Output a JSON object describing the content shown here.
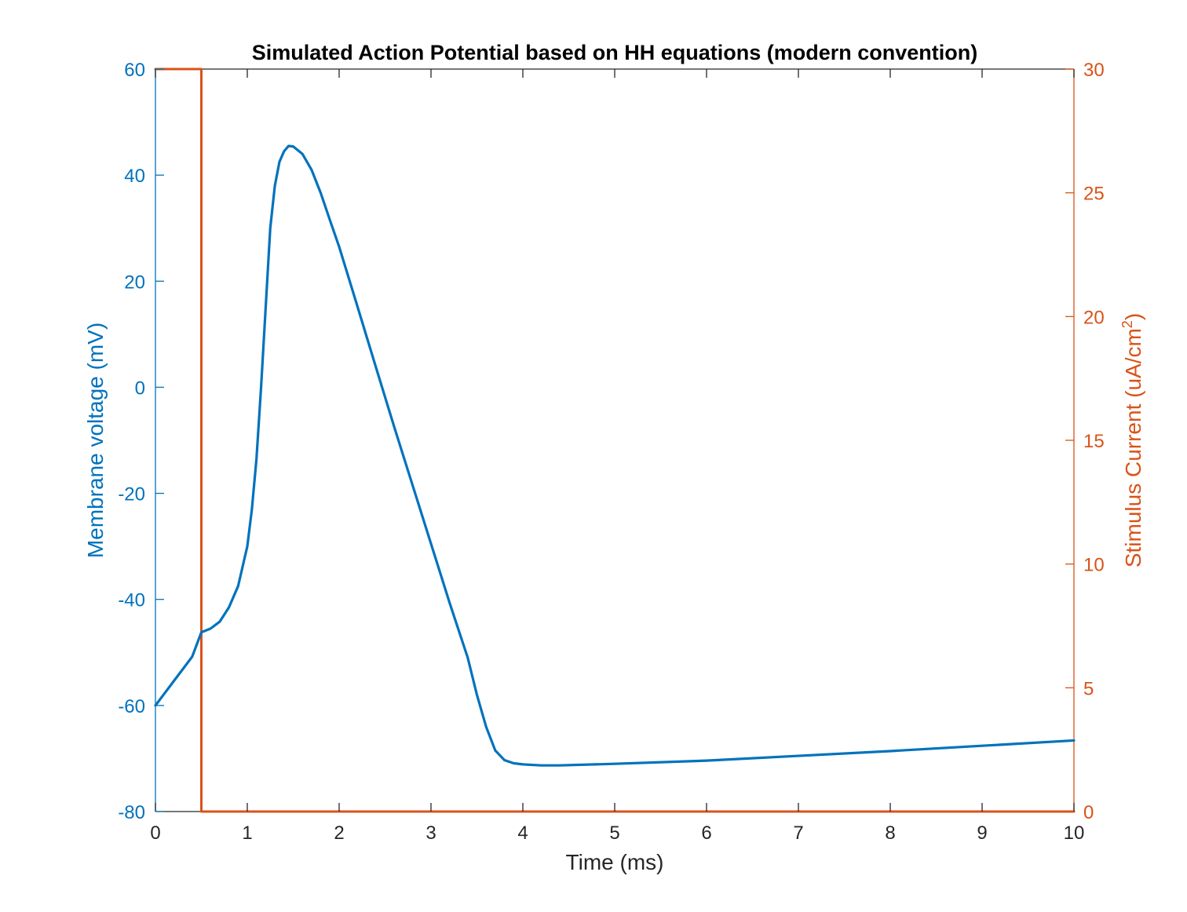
{
  "chart_data": {
    "type": "line",
    "title": "Simulated Action Potential based on HH equations (modern convention)",
    "xlabel": "Time (ms)",
    "ylabel_left": "Membrane voltage (mV)",
    "ylabel_right_prefix": "Stimulus Current (uA/cm",
    "ylabel_right_superscript": "2",
    "ylabel_right_suffix": ")",
    "xlim": [
      0,
      10
    ],
    "ylim_left": [
      -80,
      60
    ],
    "ylim_right": [
      0,
      30
    ],
    "x_ticks": [
      "0",
      "1",
      "2",
      "3",
      "4",
      "5",
      "6",
      "7",
      "8",
      "9",
      "10"
    ],
    "y_left_ticks": [
      "-80",
      "-60",
      "-40",
      "-20",
      "0",
      "20",
      "40",
      "60"
    ],
    "y_right_ticks": [
      "0",
      "5",
      "10",
      "15",
      "20",
      "25",
      "30"
    ],
    "grid": false,
    "box": true,
    "colors": {
      "left_axis": "#0072BD",
      "right_axis": "#D95319",
      "axes": "#262626",
      "title": "#000000"
    },
    "series": [
      {
        "axis": "left",
        "color": "#0072BD",
        "x": [
          0,
          0.1,
          0.2,
          0.3,
          0.4,
          0.5,
          0.6,
          0.7,
          0.8,
          0.9,
          1.0,
          1.05,
          1.1,
          1.15,
          1.2,
          1.25,
          1.3,
          1.35,
          1.4,
          1.45,
          1.5,
          1.6,
          1.7,
          1.8,
          1.9,
          2.0,
          2.2,
          2.4,
          2.6,
          2.8,
          3.0,
          3.2,
          3.4,
          3.5,
          3.6,
          3.7,
          3.8,
          3.9,
          4.0,
          4.1,
          4.2,
          4.4,
          5.0,
          6.0,
          7.0,
          8.0,
          9.0,
          10.0
        ],
        "y": [
          -60,
          -57.7,
          -55.4,
          -53.1,
          -50.8,
          -46.2,
          -45.5,
          -44.2,
          -41.5,
          -37.5,
          -30,
          -23,
          -13.5,
          0,
          15,
          30,
          38,
          42.5,
          44.5,
          45.5,
          45.4,
          44,
          41,
          36.6,
          31.5,
          26.5,
          15.2,
          3.8,
          -7.5,
          -18.5,
          -29.5,
          -40.5,
          -51,
          -58,
          -64,
          -68.5,
          -70.3,
          -70.9,
          -71.1,
          -71.2,
          -71.3,
          -71.3,
          -71.0,
          -70.4,
          -69.5,
          -68.6,
          -67.6,
          -66.6
        ]
      },
      {
        "axis": "right",
        "color": "#D95319",
        "x": [
          0,
          0.5,
          0.5,
          10
        ],
        "y": [
          30,
          30,
          0,
          0
        ]
      }
    ]
  }
}
